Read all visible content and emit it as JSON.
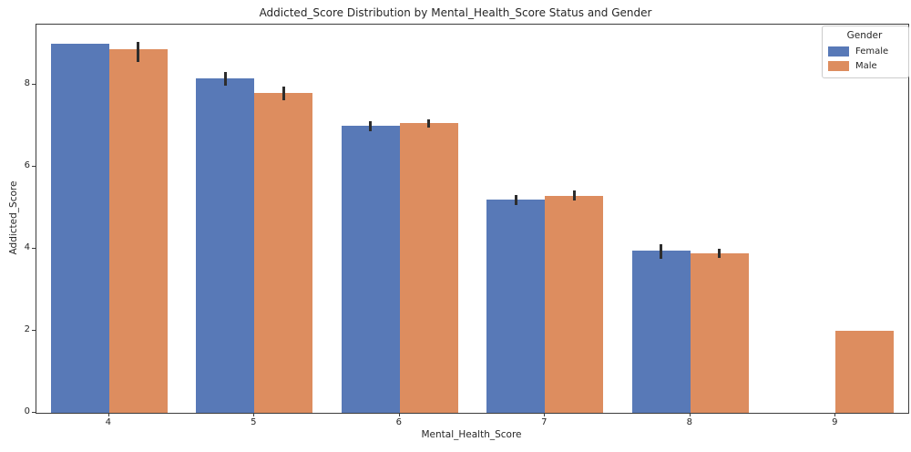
{
  "figure": {
    "title": "Addicted_Score Distribution by Mental_Health_Score Status and Gender"
  },
  "legend": {
    "title": "Gender",
    "entries": [
      "Female",
      "Male"
    ]
  },
  "chart_data": {
    "type": "bar",
    "title": "Addicted_Score Distribution by Mental_Health_Score Status and Gender",
    "xlabel": "Mental_Health_Score",
    "ylabel": "Addicted_Score",
    "categories": [
      "4",
      "5",
      "6",
      "7",
      "8",
      "9"
    ],
    "series": [
      {
        "name": "Female",
        "color": "#5879b7",
        "values": [
          9.0,
          8.15,
          7.0,
          5.2,
          3.95,
          null
        ],
        "error_bars": [
          null,
          [
            7.98,
            8.31
          ],
          [
            6.87,
            7.11
          ],
          [
            5.07,
            5.31
          ],
          [
            3.76,
            4.12
          ],
          null
        ]
      },
      {
        "name": "Male",
        "color": "#dd8d5f",
        "values": [
          8.88,
          7.8,
          7.07,
          5.3,
          3.9,
          2.0
        ],
        "error_bars": [
          [
            8.55,
            9.05
          ],
          [
            7.63,
            7.95
          ],
          [
            6.96,
            7.16
          ],
          [
            5.17,
            5.43
          ],
          [
            3.79,
            4.0
          ],
          null
        ]
      }
    ],
    "y_ticks": [
      0,
      2,
      4,
      6,
      8
    ],
    "ylim": [
      0,
      9.47
    ],
    "grid": false,
    "legend_position": "upper right",
    "error_bar_color": "#2d2d2d",
    "axis_color": "#3c3c3c",
    "bar_group_width_fraction": 0.8
  }
}
